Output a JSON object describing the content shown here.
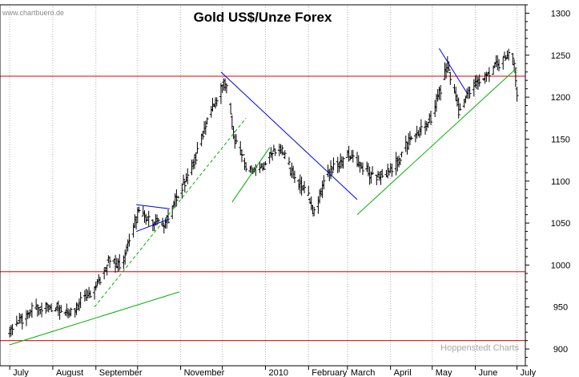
{
  "source_label": "www.chartbuero.de",
  "footer_label": "Hoppenstedt Charts",
  "colors": {
    "support_resistance": "#e00000",
    "uptrend": "#00b000",
    "downtrend": "#0000e0",
    "price": "#000000",
    "grid": "#b0b0b0"
  },
  "chart_data": {
    "type": "ohlc",
    "title": "Gold US$/Unze Forex",
    "xlabel": "",
    "ylabel": "",
    "ylim": [
      880,
      1310
    ],
    "grid": "vertical-dotted",
    "y_ticks": [
      900,
      950,
      1000,
      1050,
      1100,
      1150,
      1200,
      1250,
      1300
    ],
    "x_ticks": [
      "July",
      "August",
      "September",
      "November",
      "2010",
      "February",
      "March",
      "April",
      "May",
      "June",
      "July"
    ],
    "series": [
      {
        "x": [
          "2009-07-01",
          "2009-07-15",
          "2009-08-01",
          "2009-08-15",
          "2009-09-01",
          "2009-09-10",
          "2009-09-20",
          "2009-10-01",
          "2009-10-10",
          "2009-10-20",
          "2009-11-01",
          "2009-11-10",
          "2009-11-20",
          "2009-12-03",
          "2009-12-10",
          "2009-12-20",
          "2010-01-01",
          "2010-01-10",
          "2010-01-20",
          "2010-02-01",
          "2010-02-05",
          "2010-02-15",
          "2010-03-01",
          "2010-03-10",
          "2010-03-20",
          "2010-04-01",
          "2010-04-15",
          "2010-05-01",
          "2010-05-12",
          "2010-05-20",
          "2010-06-01",
          "2010-06-10",
          "2010-06-20",
          "2010-06-28",
          "2010-07-01"
        ],
        "values": [
          920,
          945,
          950,
          945,
          975,
          1005,
          1000,
          1060,
          1055,
          1045,
          1090,
          1120,
          1170,
          1220,
          1150,
          1110,
          1120,
          1145,
          1110,
          1080,
          1060,
          1110,
          1130,
          1120,
          1105,
          1110,
          1150,
          1175,
          1240,
          1185,
          1215,
          1225,
          1245,
          1250,
          1205
        ]
      }
    ],
    "lines": [
      {
        "kind": "horizontal",
        "color": "#e00000",
        "y": 1225
      },
      {
        "kind": "horizontal",
        "color": "#e00000",
        "y": 992
      },
      {
        "kind": "horizontal",
        "color": "#e00000",
        "y": 910
      },
      {
        "kind": "trend",
        "color": "#00b000",
        "style": "solid",
        "from": [
          "2009-07-01",
          905
        ],
        "to": [
          "2009-10-31",
          968
        ]
      },
      {
        "kind": "trend",
        "color": "#00b000",
        "style": "dashed",
        "from": [
          "2009-08-31",
          950
        ],
        "to": [
          "2009-12-18",
          1175
        ]
      },
      {
        "kind": "trend",
        "color": "#00b000",
        "style": "solid",
        "from": [
          "2009-12-08",
          1075
        ],
        "to": [
          "2010-01-04",
          1140
        ]
      },
      {
        "kind": "trend",
        "color": "#00b000",
        "style": "solid",
        "from": [
          "2010-03-08",
          1060
        ],
        "to": [
          "2010-07-01",
          1235
        ]
      },
      {
        "kind": "trend",
        "color": "#0000e0",
        "style": "solid",
        "from": [
          "2009-11-30",
          1230
        ],
        "to": [
          "2010-03-08",
          1078
        ]
      },
      {
        "kind": "trend",
        "color": "#0000e0",
        "style": "solid",
        "from": [
          "2010-05-06",
          1258
        ],
        "to": [
          "2010-05-26",
          1205
        ]
      },
      {
        "kind": "trend",
        "color": "#0000e0",
        "style": "solid",
        "from": [
          "2009-09-30",
          1072
        ],
        "to": [
          "2009-10-24",
          1067
        ]
      },
      {
        "kind": "trend",
        "color": "#0000e0",
        "style": "solid",
        "from": [
          "2009-09-30",
          1040
        ],
        "to": [
          "2009-10-24",
          1055
        ]
      }
    ]
  }
}
